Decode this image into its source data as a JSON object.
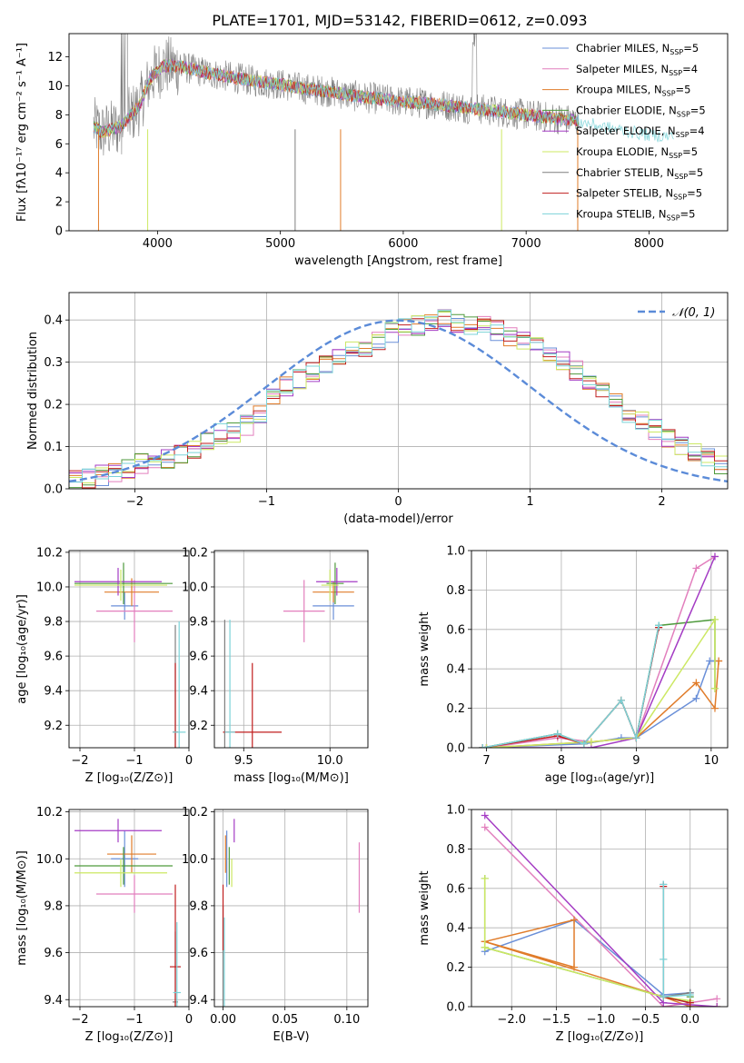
{
  "colors": {
    "chab_miles": "#6a8fd8",
    "salp_miles": "#e27fbd",
    "krou_miles": "#e07c2a",
    "chab_elodie": "#4e9a3c",
    "salp_elodie": "#a43cc4",
    "krou_elodie": "#cce863",
    "chab_stelib": "#7f7f7f",
    "salp_stelib": "#c01e1e",
    "krou_stelib": "#7bd3d8",
    "grid": "#b0b0b0",
    "normal": "#5b8bd8"
  },
  "chart_data": [
    {
      "id": "spectrum",
      "type": "line",
      "title": "PLATE=1701, MJD=53142, FIBERID=0612, z=0.093",
      "xlabel": "wavelength [Angstrom, rest frame]",
      "ylabel": "Flux [fλ10⁻¹⁷ erg cm⁻² s⁻¹ A⁻¹]",
      "xlim": [
        3280,
        8640
      ],
      "ylim": [
        0,
        13.6
      ],
      "xticks": [
        "4000",
        "5000",
        "6000",
        "7000",
        "8000"
      ],
      "yticks": [
        "0",
        "2",
        "4",
        "6",
        "8",
        "10",
        "12"
      ],
      "legend_position": "upper-right",
      "continuum": {
        "x": [
          3480,
          3550,
          3700,
          3850,
          3950,
          4050,
          4200,
          4400,
          4600,
          4800,
          5000,
          5200,
          5400,
          5600,
          5800,
          6000,
          6200,
          6400,
          6600,
          6800,
          7000,
          7200,
          7400,
          7600,
          7800,
          8000,
          8200
        ],
        "y": [
          7.2,
          6.8,
          7.2,
          8.6,
          10.6,
          11.4,
          11.3,
          10.9,
          10.6,
          10.3,
          10.1,
          9.8,
          9.6,
          9.3,
          9.1,
          8.9,
          8.8,
          8.6,
          8.4,
          8.2,
          8.0,
          7.8,
          7.6,
          7.2,
          6.9,
          6.6,
          6.5
        ]
      },
      "observed_range": [
        3480,
        7430
      ],
      "series": [
        {
          "name": "Chabrier MILES",
          "legend_sub": "SSP",
          "n_ssp": "=5",
          "color_key": "chab_miles"
        },
        {
          "name": "Salpeter MILES",
          "legend_sub": "SSP",
          "n_ssp": "=4",
          "color_key": "salp_miles"
        },
        {
          "name": "Kroupa MILES",
          "legend_sub": "SSP",
          "n_ssp": "=5",
          "color_key": "krou_miles"
        },
        {
          "name": "Chabrier ELODIE",
          "legend_sub": "SSP",
          "n_ssp": "=5",
          "color_key": "chab_elodie"
        },
        {
          "name": "Salpeter ELODIE",
          "legend_sub": "SSP",
          "n_ssp": "=4",
          "color_key": "salp_elodie"
        },
        {
          "name": "Kroupa ELODIE",
          "legend_sub": "SSP",
          "n_ssp": "=5",
          "color_key": "krou_elodie"
        },
        {
          "name": "Chabrier STELIB",
          "legend_sub": "SSP",
          "n_ssp": "=5",
          "color_key": "chab_stelib"
        },
        {
          "name": "Salpeter STELIB",
          "legend_sub": "SSP",
          "n_ssp": "=5",
          "color_key": "salp_stelib"
        },
        {
          "name": "Kroupa STELIB",
          "legend_sub": "SSP",
          "n_ssp": "=5",
          "color_key": "krou_stelib"
        }
      ]
    },
    {
      "id": "residual_hist",
      "type": "line",
      "xlabel": "(data-model)/error",
      "ylabel": "Normed distribution",
      "xlim": [
        -2.5,
        2.5
      ],
      "ylim": [
        0,
        0.465
      ],
      "xticks": [
        "−2",
        "−1",
        "0",
        "1",
        "2"
      ],
      "yticks": [
        "0.0",
        "0.1",
        "0.2",
        "0.3",
        "0.4"
      ],
      "bin_width": 0.1,
      "bin_start": -2.5,
      "base_counts": [
        0.018,
        0.025,
        0.032,
        0.04,
        0.05,
        0.06,
        0.068,
        0.072,
        0.08,
        0.095,
        0.11,
        0.13,
        0.135,
        0.15,
        0.18,
        0.225,
        0.245,
        0.26,
        0.275,
        0.3,
        0.315,
        0.33,
        0.335,
        0.355,
        0.37,
        0.38,
        0.385,
        0.392,
        0.4,
        0.395,
        0.385,
        0.39,
        0.375,
        0.36,
        0.35,
        0.34,
        0.32,
        0.3,
        0.28,
        0.25,
        0.23,
        0.205,
        0.18,
        0.16,
        0.14,
        0.12,
        0.1,
        0.085,
        0.075,
        0.06,
        0.048
      ],
      "legend": "𝒩(0, 1)",
      "legend_position": "upper-right"
    },
    {
      "id": "age_vs_Z",
      "type": "scatter",
      "xlabel": "Z [log₁₀(Z/Z⊙)]",
      "ylabel": "age  [log₁₀(age/yr)]",
      "xlim": [
        -2.2,
        0.0
      ],
      "ylim": [
        9.07,
        10.21
      ],
      "xticks": [
        "−2",
        "−1",
        "0"
      ],
      "yticks": [
        "9.2",
        "9.4",
        "9.6",
        "9.8",
        "10.0",
        "10.2"
      ],
      "points": [
        {
          "c": "chab_miles",
          "x": -1.18,
          "xe": 0.25,
          "y": 9.89,
          "ye": 0.08
        },
        {
          "c": "salp_miles",
          "x": -1.0,
          "xe": 0.7,
          "y": 9.86,
          "ye": 0.18
        },
        {
          "c": "krou_miles",
          "x": -1.05,
          "xe": 0.5,
          "y": 9.97,
          "ye": 0.08
        },
        {
          "c": "chab_elodie",
          "x": -1.2,
          "xe": 0.9,
          "y": 10.02,
          "ye": 0.12
        },
        {
          "c": "salp_elodie",
          "x": -1.3,
          "xe": 0.8,
          "y": 10.03,
          "ye": 0.08
        },
        {
          "c": "krou_elodie",
          "x": -1.25,
          "xe": 0.85,
          "y": 10.01,
          "ye": 0.09
        },
        {
          "c": "chab_stelib",
          "x": -0.25,
          "xe": 0.05,
          "y": 9.16,
          "ye": 0.62
        },
        {
          "c": "salp_stelib",
          "x": -0.25,
          "xe": 0.05,
          "y": 9.16,
          "ye": 0.4
        },
        {
          "c": "krou_stelib",
          "x": -0.18,
          "xe": 0.12,
          "y": 9.16,
          "ye": 0.64
        }
      ]
    },
    {
      "id": "age_vs_mass",
      "type": "scatter",
      "xlabel": "mass [log₁₀(M/M⊙)]",
      "ylabel": "",
      "xlim": [
        9.33,
        10.22
      ],
      "ylim": [
        9.07,
        10.21
      ],
      "xticks": [
        "9.5",
        "10.0"
      ],
      "yticks": [
        "9.2",
        "9.4",
        "9.6",
        "9.8",
        "10.0",
        "10.2"
      ],
      "points": [
        {
          "c": "chab_miles",
          "x": 10.02,
          "xe": 0.12,
          "y": 9.89,
          "ye": 0.08
        },
        {
          "c": "salp_miles",
          "x": 9.85,
          "xe": 0.12,
          "y": 9.86,
          "ye": 0.18
        },
        {
          "c": "krou_miles",
          "x": 10.02,
          "xe": 0.12,
          "y": 9.97,
          "ye": 0.06
        },
        {
          "c": "chab_elodie",
          "x": 10.03,
          "xe": 0.05,
          "y": 10.02,
          "ye": 0.12
        },
        {
          "c": "salp_elodie",
          "x": 10.04,
          "xe": 0.12,
          "y": 10.03,
          "ye": 0.08
        },
        {
          "c": "krou_elodie",
          "x": 10.0,
          "xe": 0.05,
          "y": 10.01,
          "ye": 0.09
        },
        {
          "c": "chab_stelib",
          "x": 9.39,
          "xe": 0.0,
          "y": 9.16,
          "ye": 0.65
        },
        {
          "c": "salp_stelib",
          "x": 9.55,
          "xe": 0.17,
          "y": 9.16,
          "ye": 0.4
        },
        {
          "c": "krou_stelib",
          "x": 9.42,
          "xe": 0.03,
          "y": 9.16,
          "ye": 0.65
        }
      ]
    },
    {
      "id": "weight_vs_age",
      "type": "line",
      "xlabel": "age  [log₁₀(age/yr)]",
      "ylabel": "mass weight",
      "xlim": [
        6.8,
        10.22
      ],
      "ylim": [
        0,
        1.0
      ],
      "xticks": [
        "7",
        "8",
        "9",
        "10"
      ],
      "yticks": [
        "0.0",
        "0.2",
        "0.4",
        "0.6",
        "0.8",
        "1.0"
      ],
      "series": [
        {
          "c": "chab_miles",
          "x": [
            6.95,
            8.3,
            8.8,
            9.0,
            9.8,
            9.98,
            10.05
          ],
          "y": [
            0.0,
            0.02,
            0.05,
            0.05,
            0.25,
            0.44,
            0.44
          ]
        },
        {
          "c": "salp_miles",
          "x": [
            7.0,
            7.95,
            8.4,
            9.0,
            9.8,
            10.05
          ],
          "y": [
            0.0,
            0.05,
            0.03,
            0.05,
            0.91,
            0.97
          ]
        },
        {
          "c": "krou_miles",
          "x": [
            7.0,
            8.4,
            9.0,
            9.8,
            10.05,
            10.1,
            10.1
          ],
          "y": [
            0.0,
            0.03,
            0.05,
            0.33,
            0.2,
            0.44,
            0.44
          ]
        },
        {
          "c": "chab_elodie",
          "x": [
            6.95,
            7.95,
            8.3,
            8.8,
            9.0,
            9.3,
            9.3,
            10.05,
            10.05
          ],
          "y": [
            0.0,
            0.07,
            0.02,
            0.24,
            0.05,
            0.62,
            0.62,
            0.65,
            0.3
          ]
        },
        {
          "c": "salp_elodie",
          "x": [
            7.0,
            8.4,
            9.0,
            10.05
          ],
          "y": [
            0.0,
            0.0,
            0.05,
            0.97
          ]
        },
        {
          "c": "krou_elodie",
          "x": [
            7.0,
            8.4,
            9.0,
            10.05,
            10.05
          ],
          "y": [
            0.0,
            0.03,
            0.05,
            0.65,
            0.3
          ]
        },
        {
          "c": "chab_stelib",
          "x": [
            6.95,
            7.95,
            8.3,
            8.8,
            9.0,
            9.3,
            9.3
          ],
          "y": [
            0.0,
            0.07,
            0.02,
            0.24,
            0.05,
            0.61,
            0.62
          ]
        },
        {
          "c": "salp_stelib",
          "x": [
            6.95,
            7.95,
            8.3,
            8.8,
            9.0,
            9.3
          ],
          "y": [
            0.0,
            0.06,
            0.02,
            0.24,
            0.05,
            0.61
          ]
        },
        {
          "c": "krou_stelib",
          "x": [
            6.95,
            7.95,
            8.3,
            8.8,
            9.0,
            9.3,
            9.3
          ],
          "y": [
            0.0,
            0.07,
            0.02,
            0.24,
            0.05,
            0.62,
            0.62
          ]
        }
      ]
    },
    {
      "id": "mass_vs_Z",
      "type": "scatter",
      "xlabel": "Z [log₁₀(Z/Z⊙)]",
      "ylabel": "mass [log₁₀(M/M⊙)]",
      "xlim": [
        -2.2,
        0.0
      ],
      "ylim": [
        9.37,
        10.21
      ],
      "xticks": [
        "−2",
        "−1",
        "0"
      ],
      "yticks": [
        "9.4",
        "9.6",
        "9.8",
        "10.0",
        "10.2"
      ],
      "points": [
        {
          "c": "chab_miles",
          "x": -1.18,
          "xe": 0.25,
          "y": 10.0,
          "ye": 0.12
        },
        {
          "c": "salp_miles",
          "x": -1.0,
          "xe": 0.7,
          "y": 9.85,
          "ye": 0.08
        },
        {
          "c": "krou_miles",
          "x": -1.05,
          "xe": 0.45,
          "y": 10.02,
          "ye": 0.08
        },
        {
          "c": "chab_elodie",
          "x": -1.2,
          "xe": 0.9,
          "y": 9.97,
          "ye": 0.08
        },
        {
          "c": "salp_elodie",
          "x": -1.3,
          "xe": 0.8,
          "y": 10.12,
          "ye": 0.05
        },
        {
          "c": "krou_elodie",
          "x": -1.25,
          "xe": 0.85,
          "y": 9.94,
          "ye": 0.06
        },
        {
          "c": "chab_stelib",
          "x": -0.25,
          "xe": 0.05,
          "y": 9.39,
          "ye": 0.3
        },
        {
          "c": "salp_stelib",
          "x": -0.25,
          "xe": 0.1,
          "y": 9.54,
          "ye": 0.35
        },
        {
          "c": "krou_stelib",
          "x": -0.22,
          "xe": 0.07,
          "y": 9.43,
          "ye": 0.3
        }
      ]
    },
    {
      "id": "mass_vs_ebv",
      "type": "scatter",
      "xlabel": "E(B-V)",
      "ylabel": "",
      "xlim": [
        -0.007,
        0.117
      ],
      "ylim": [
        9.37,
        10.21
      ],
      "xticks": [
        "0.00",
        "0.05",
        "0.10"
      ],
      "yticks": [
        "9.4",
        "9.6",
        "9.8",
        "10.0",
        "10.2"
      ],
      "points": [
        {
          "c": "chab_miles",
          "x": 0.003,
          "xe": 0.0,
          "y": 10.0,
          "ye": 0.12
        },
        {
          "c": "salp_miles",
          "x": 0.11,
          "xe": 0.0,
          "y": 9.92,
          "ye": 0.15
        },
        {
          "c": "krou_miles",
          "x": 0.002,
          "xe": 0.0,
          "y": 10.02,
          "ye": 0.08
        },
        {
          "c": "chab_elodie",
          "x": 0.005,
          "xe": 0.0,
          "y": 9.97,
          "ye": 0.08
        },
        {
          "c": "salp_elodie",
          "x": 0.009,
          "xe": 0.0,
          "y": 10.12,
          "ye": 0.05
        },
        {
          "c": "krou_elodie",
          "x": 0.007,
          "xe": 0.0,
          "y": 9.94,
          "ye": 0.06
        },
        {
          "c": "chab_stelib",
          "x": 0.0,
          "xe": 0.0,
          "y": 9.5,
          "ye": 0.3
        },
        {
          "c": "salp_stelib",
          "x": 0.0,
          "xe": 0.0,
          "y": 9.75,
          "ye": 0.14
        },
        {
          "c": "krou_stelib",
          "x": 0.001,
          "xe": 0.0,
          "y": 9.55,
          "ye": 0.2
        }
      ]
    },
    {
      "id": "weight_vs_Z",
      "type": "line",
      "xlabel": "Z [log₁₀(Z/Z⊙)]",
      "ylabel": "mass weight",
      "xlim": [
        -2.45,
        0.42
      ],
      "ylim": [
        0,
        1.0
      ],
      "xticks": [
        "−2.0",
        "−1.5",
        "−1.0",
        "−0.5",
        "0.0"
      ],
      "yticks": [
        "0.0",
        "0.2",
        "0.4",
        "0.6",
        "0.8",
        "1.0"
      ],
      "series": [
        {
          "c": "chab_miles",
          "x": [
            -2.3,
            -1.3,
            -0.3,
            0.0
          ],
          "y": [
            0.28,
            0.44,
            0.06,
            0.07
          ]
        },
        {
          "c": "salp_miles",
          "x": [
            -2.3,
            -0.3,
            0.0,
            0.3
          ],
          "y": [
            0.91,
            0.0,
            0.02,
            0.04
          ]
        },
        {
          "c": "krou_miles",
          "x": [
            -2.3,
            -1.3,
            -1.3,
            -2.3,
            -0.3,
            0.0,
            0.3
          ],
          "y": [
            0.33,
            0.2,
            0.44,
            0.33,
            0.05,
            0.0,
            0.0
          ]
        },
        {
          "c": "chab_elodie",
          "x": [
            -2.3,
            -2.3,
            -0.3,
            0.0,
            0.0
          ],
          "y": [
            0.65,
            0.3,
            0.05,
            0.02,
            0.05
          ]
        },
        {
          "c": "salp_elodie",
          "x": [
            -2.3,
            -0.3,
            0.3
          ],
          "y": [
            0.97,
            0.02,
            0.0
          ]
        },
        {
          "c": "krou_elodie",
          "x": [
            -2.3,
            -2.3,
            -0.3,
            0.0
          ],
          "y": [
            0.65,
            0.3,
            0.05,
            0.03
          ]
        },
        {
          "c": "chab_stelib",
          "x": [
            -0.3,
            -0.3,
            -0.3,
            0.0
          ],
          "y": [
            0.62,
            0.24,
            0.05,
            0.07
          ]
        },
        {
          "c": "salp_stelib",
          "x": [
            -0.3,
            -0.3,
            0.0
          ],
          "y": [
            0.61,
            0.05,
            0.02
          ]
        },
        {
          "c": "krou_stelib",
          "x": [
            -0.3,
            -0.3,
            -0.3,
            0.0
          ],
          "y": [
            0.62,
            0.24,
            0.05,
            0.06
          ]
        }
      ]
    }
  ]
}
